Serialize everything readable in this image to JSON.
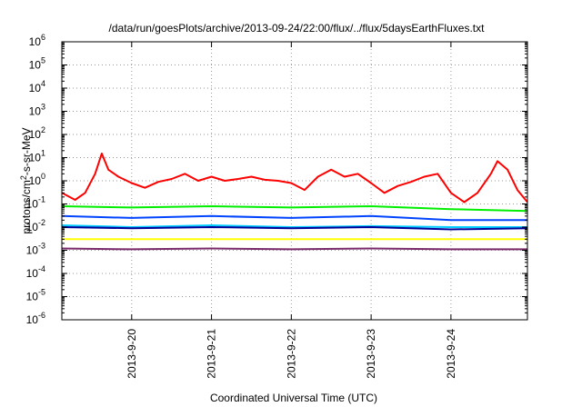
{
  "chart_data": {
    "type": "line",
    "title": "/data/run/goesPlots/archive/2013-09-24/22:00/flux/../flux/5daysEarthFluxes.txt",
    "xlabel": "Coordinated Universal Time (UTC)",
    "ylabel": "protons/cm2-s-sr-MeV",
    "ylabel_parts": {
      "pre": "protons/cm",
      "sup": "2",
      "post": "-s-sr-MeV"
    },
    "yscale": "log",
    "ylim": [
      1e-06,
      1000000.0
    ],
    "y_tick_labels": [
      {
        "base": "10",
        "exp": "-6"
      },
      {
        "base": "10",
        "exp": "-5"
      },
      {
        "base": "10",
        "exp": "-4"
      },
      {
        "base": "10",
        "exp": "-3"
      },
      {
        "base": "10",
        "exp": "-2"
      },
      {
        "base": "10",
        "exp": "-1"
      },
      {
        "base": "10",
        "exp": "0"
      },
      {
        "base": "10",
        "exp": "1"
      },
      {
        "base": "10",
        "exp": "2"
      },
      {
        "base": "10",
        "exp": "3"
      },
      {
        "base": "10",
        "exp": "4"
      },
      {
        "base": "10",
        "exp": "5"
      },
      {
        "base": "10",
        "exp": "6"
      }
    ],
    "x_range": [
      "2013-09-19T03:00",
      "2013-09-24T23:00"
    ],
    "x_ticks": [
      {
        "label": "2013-9-20",
        "date": "2013-09-20"
      },
      {
        "label": "2013-9-21",
        "date": "2013-09-21"
      },
      {
        "label": "2013-9-22",
        "date": "2013-09-22"
      },
      {
        "label": "2013-9-23",
        "date": "2013-09-23"
      },
      {
        "label": "2013-9-24",
        "date": "2013-09-24"
      }
    ],
    "grid": true,
    "legend": "none",
    "series": [
      {
        "color": "#ff0000",
        "points": [
          [
            "2013-09-19T03:00",
            0.3
          ],
          [
            "2013-09-19T07:00",
            0.15
          ],
          [
            "2013-09-19T10:00",
            0.3
          ],
          [
            "2013-09-19T13:00",
            2
          ],
          [
            "2013-09-19T15:00",
            15
          ],
          [
            "2013-09-19T17:00",
            3
          ],
          [
            "2013-09-19T20:00",
            1.5
          ],
          [
            "2013-09-20T00:00",
            0.8
          ],
          [
            "2013-09-20T04:00",
            0.5
          ],
          [
            "2013-09-20T08:00",
            0.9
          ],
          [
            "2013-09-20T12:00",
            1.2
          ],
          [
            "2013-09-20T16:00",
            2
          ],
          [
            "2013-09-20T20:00",
            1
          ],
          [
            "2013-09-21T00:00",
            1.5
          ],
          [
            "2013-09-21T04:00",
            1
          ],
          [
            "2013-09-21T08:00",
            1.2
          ],
          [
            "2013-09-21T12:00",
            1.5
          ],
          [
            "2013-09-21T16:00",
            1.1
          ],
          [
            "2013-09-21T20:00",
            1
          ],
          [
            "2013-09-22T00:00",
            0.8
          ],
          [
            "2013-09-22T04:00",
            0.4
          ],
          [
            "2013-09-22T08:00",
            1.5
          ],
          [
            "2013-09-22T12:00",
            3
          ],
          [
            "2013-09-22T16:00",
            1.5
          ],
          [
            "2013-09-22T20:00",
            2
          ],
          [
            "2013-09-23T00:00",
            0.8
          ],
          [
            "2013-09-23T04:00",
            0.3
          ],
          [
            "2013-09-23T08:00",
            0.6
          ],
          [
            "2013-09-23T12:00",
            0.9
          ],
          [
            "2013-09-23T16:00",
            1.5
          ],
          [
            "2013-09-23T20:00",
            2
          ],
          [
            "2013-09-24T00:00",
            0.3
          ],
          [
            "2013-09-24T04:00",
            0.12
          ],
          [
            "2013-09-24T08:00",
            0.3
          ],
          [
            "2013-09-24T12:00",
            2
          ],
          [
            "2013-09-24T14:00",
            7
          ],
          [
            "2013-09-24T17:00",
            3
          ],
          [
            "2013-09-24T20:00",
            0.4
          ],
          [
            "2013-09-24T23:00",
            0.12
          ]
        ]
      },
      {
        "color": "#00ee00",
        "points": [
          [
            "2013-09-19T03:00",
            0.08
          ],
          [
            "2013-09-20T00:00",
            0.07
          ],
          [
            "2013-09-21T00:00",
            0.08
          ],
          [
            "2013-09-22T00:00",
            0.07
          ],
          [
            "2013-09-23T00:00",
            0.08
          ],
          [
            "2013-09-24T00:00",
            0.06
          ],
          [
            "2013-09-24T23:00",
            0.05
          ]
        ]
      },
      {
        "color": "#0044ff",
        "points": [
          [
            "2013-09-19T03:00",
            0.03
          ],
          [
            "2013-09-20T00:00",
            0.025
          ],
          [
            "2013-09-21T00:00",
            0.03
          ],
          [
            "2013-09-22T00:00",
            0.025
          ],
          [
            "2013-09-23T00:00",
            0.03
          ],
          [
            "2013-09-24T00:00",
            0.02
          ],
          [
            "2013-09-24T23:00",
            0.02
          ]
        ]
      },
      {
        "color": "#00ccff",
        "points": [
          [
            "2013-09-19T03:00",
            0.012
          ],
          [
            "2013-09-20T00:00",
            0.01
          ],
          [
            "2013-09-21T00:00",
            0.012
          ],
          [
            "2013-09-22T00:00",
            0.01
          ],
          [
            "2013-09-23T00:00",
            0.011
          ],
          [
            "2013-09-24T00:00",
            0.01
          ],
          [
            "2013-09-24T23:00",
            0.01
          ]
        ]
      },
      {
        "color": "#000099",
        "points": [
          [
            "2013-09-19T03:00",
            0.01
          ],
          [
            "2013-09-20T00:00",
            0.009
          ],
          [
            "2013-09-21T00:00",
            0.01
          ],
          [
            "2013-09-22T00:00",
            0.009
          ],
          [
            "2013-09-23T00:00",
            0.01
          ],
          [
            "2013-09-24T00:00",
            0.008
          ],
          [
            "2013-09-24T23:00",
            0.009
          ]
        ]
      },
      {
        "color": "#ffff00",
        "points": [
          [
            "2013-09-19T03:00",
            0.003
          ],
          [
            "2013-09-20T00:00",
            0.003
          ],
          [
            "2013-09-21T00:00",
            0.003
          ],
          [
            "2013-09-22T00:00",
            0.003
          ],
          [
            "2013-09-23T00:00",
            0.003
          ],
          [
            "2013-09-24T00:00",
            0.003
          ],
          [
            "2013-09-24T23:00",
            0.003
          ]
        ]
      },
      {
        "color": "#7a2a6a",
        "points": [
          [
            "2013-09-19T03:00",
            0.0012
          ],
          [
            "2013-09-20T00:00",
            0.0011
          ],
          [
            "2013-09-21T00:00",
            0.0012
          ],
          [
            "2013-09-22T00:00",
            0.0011
          ],
          [
            "2013-09-23T00:00",
            0.0012
          ],
          [
            "2013-09-24T00:00",
            0.0011
          ],
          [
            "2013-09-24T23:00",
            0.0011
          ]
        ]
      }
    ]
  }
}
